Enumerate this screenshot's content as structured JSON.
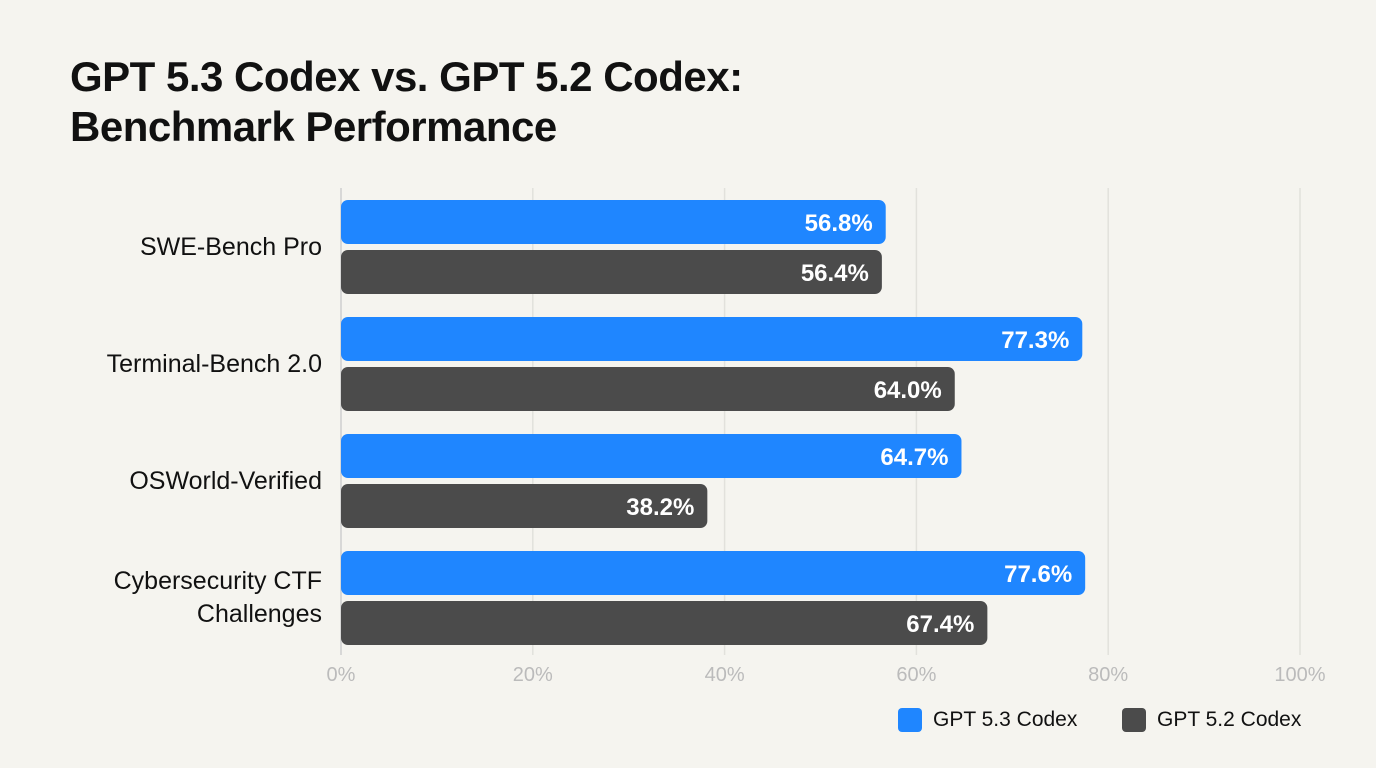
{
  "chart_data": {
    "type": "bar",
    "orientation": "horizontal",
    "title": "GPT 5.3 Codex vs. GPT 5.2 Codex:\nBenchmark Performance",
    "categories": [
      "SWE-Bench Pro",
      "Terminal-Bench 2.0",
      "OSWorld-Verified",
      "Cybersecurity CTF Challenges"
    ],
    "series": [
      {
        "name": "GPT 5.3 Codex",
        "color": "#1f86ff",
        "values": [
          56.8,
          77.3,
          64.7,
          77.6
        ],
        "labels": [
          "56.8%",
          "77.3%",
          "64.7%",
          "77.6%"
        ]
      },
      {
        "name": "GPT 5.2 Codex",
        "color": "#4b4b4b",
        "values": [
          56.4,
          64.0,
          38.2,
          67.4
        ],
        "labels": [
          "56.4%",
          "64.0%",
          "38.2%",
          "67.4%"
        ]
      }
    ],
    "xlim": [
      0,
      100
    ],
    "xticks": [
      "0%",
      "20%",
      "40%",
      "60%",
      "80%",
      "100%"
    ],
    "grid": true,
    "legend": "bottom-right"
  }
}
